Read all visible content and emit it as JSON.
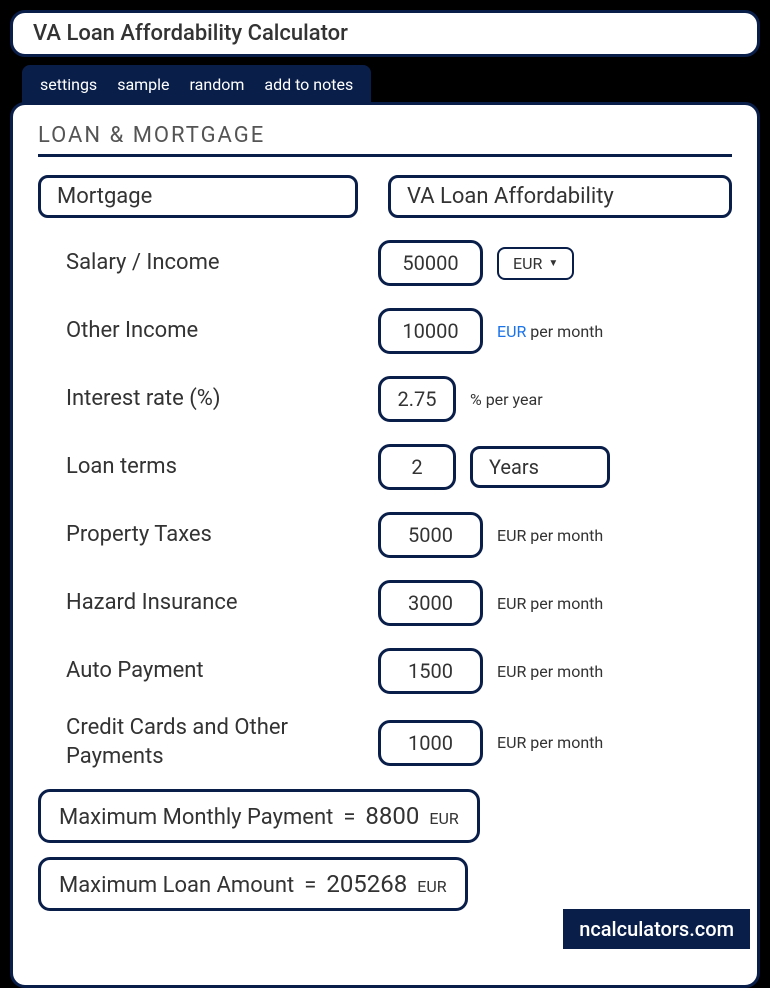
{
  "title": "VA Loan Affordability Calculator",
  "tabs": {
    "settings": "settings",
    "sample": "sample",
    "random": "random",
    "addToNotes": "add to notes"
  },
  "sectionHeader": "LOAN & MORTGAGE",
  "columnHeaders": {
    "left": "Mortgage",
    "right": "VA Loan Affordability"
  },
  "fields": {
    "salary": {
      "label": "Salary / Income",
      "value": "50000",
      "currency": "EUR"
    },
    "otherIncome": {
      "label": "Other Income",
      "value": "10000",
      "currencyLink": "EUR",
      "unit": "per month"
    },
    "interestRate": {
      "label": "Interest rate (%)",
      "value": "2.75",
      "unit": "% per year"
    },
    "loanTerms": {
      "label": "Loan terms",
      "value": "2",
      "unit": "Years"
    },
    "propertyTaxes": {
      "label": "Property Taxes",
      "value": "5000",
      "unit": "EUR per month"
    },
    "hazardInsurance": {
      "label": "Hazard Insurance",
      "value": "3000",
      "unit": "EUR per month"
    },
    "autoPayment": {
      "label": "Auto Payment",
      "value": "1500",
      "unit": "EUR per month"
    },
    "creditCards": {
      "label": "Credit Cards and Other Payments",
      "value": "1000",
      "unit": "EUR per month"
    }
  },
  "results": {
    "maxMonthly": {
      "label": "Maximum Monthly Payment",
      "equals": "=",
      "value": "8800",
      "unit": "EUR"
    },
    "maxLoan": {
      "label": "Maximum Loan Amount",
      "equals": "=",
      "value": "205268",
      "unit": "EUR"
    }
  },
  "watermark": "ncalculators.com"
}
